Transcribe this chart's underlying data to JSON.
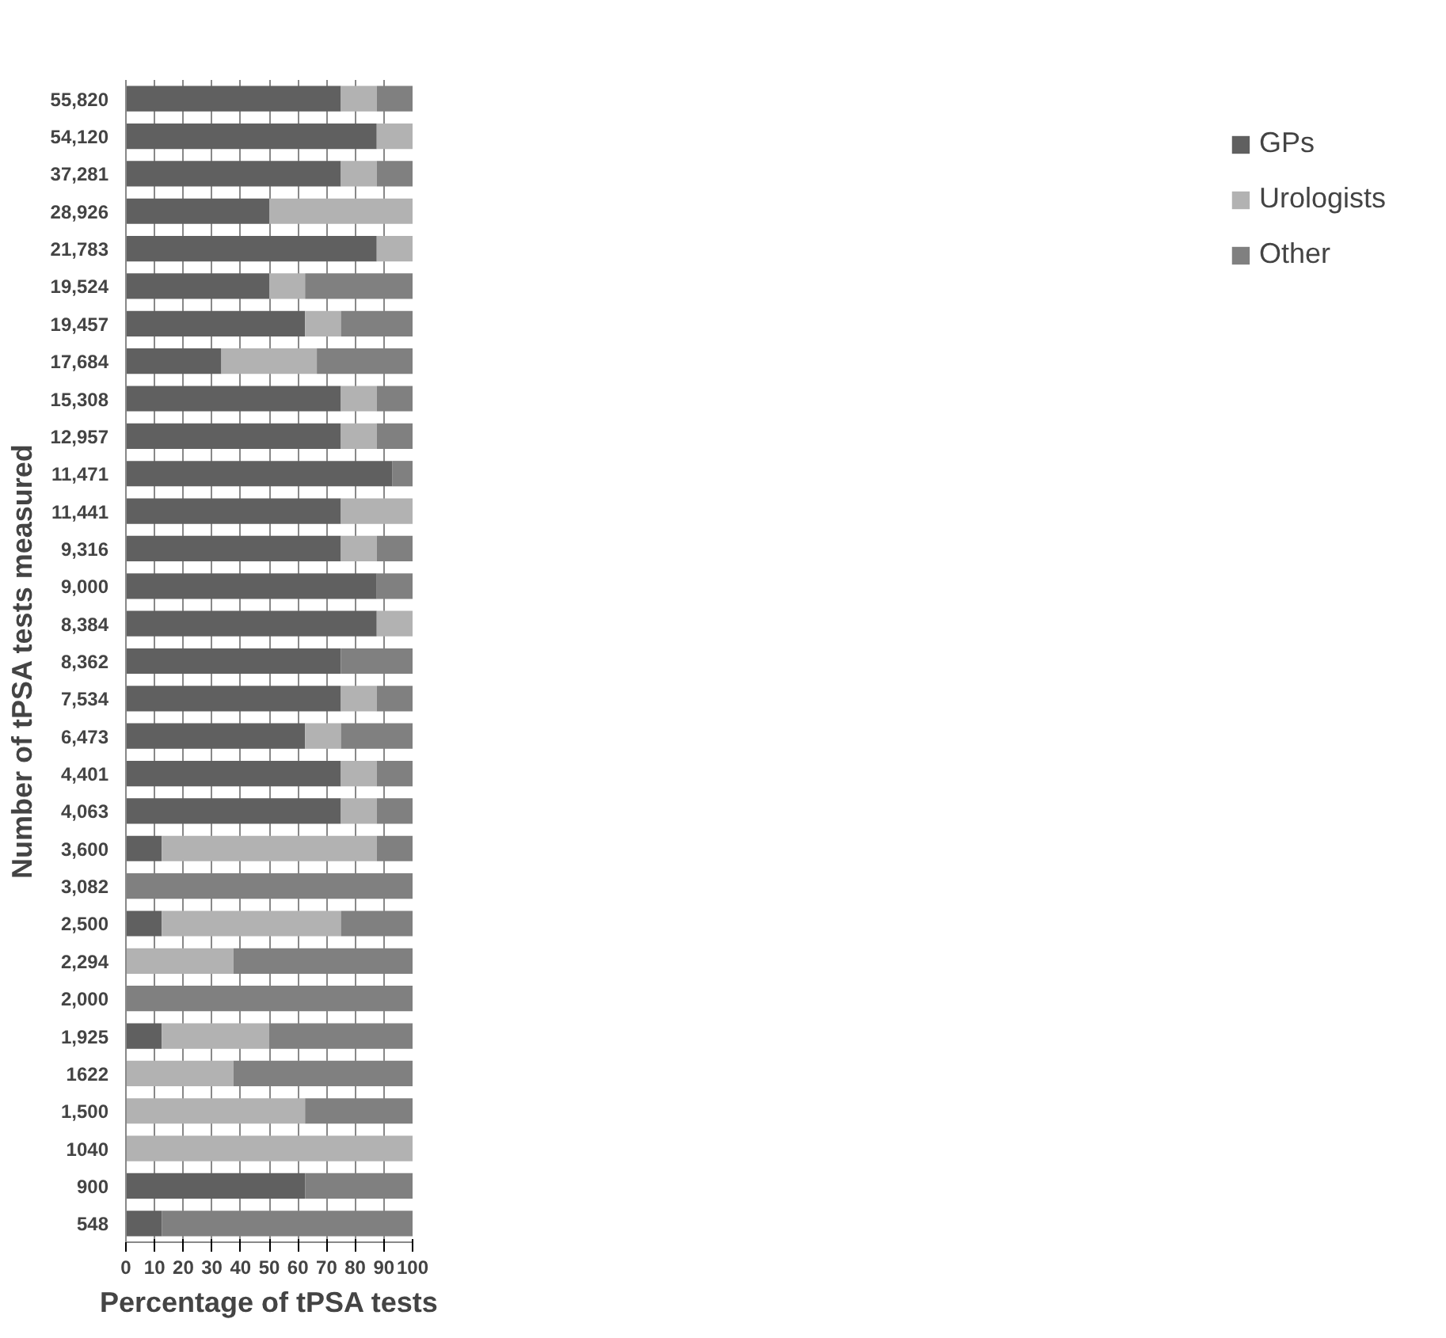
{
  "chart_data": {
    "type": "bar",
    "orientation": "horizontal",
    "stacked": true,
    "xlabel": "Percentage of tPSA tests",
    "ylabel": "Number of tPSA tests measured",
    "categories": [
      "55,820",
      "54,120",
      "37,281",
      "28,926",
      "21,783",
      "19,524",
      "19,457",
      "17,684",
      "15,308",
      "12,957",
      "11,471",
      "11,441",
      "9,316",
      "9,000",
      "8,384",
      "8,362",
      "7,534",
      "6,473",
      "4,401",
      "4,063",
      "3,600",
      "3,082",
      "2,500",
      "2,294",
      "2,000",
      "1,925",
      "1622",
      "1,500",
      "1040",
      "900",
      "548"
    ],
    "series": [
      {
        "name": "GPs",
        "color": "#606060",
        "values": [
          75,
          87.5,
          75,
          50,
          87.5,
          50,
          62.5,
          33.3,
          75,
          75,
          93,
          75,
          75,
          87.5,
          87.5,
          75,
          75,
          62.5,
          75,
          75,
          12.5,
          0,
          12.5,
          0,
          0,
          12.5,
          0,
          0,
          0,
          62.5,
          12.5
        ]
      },
      {
        "name": "Urologists",
        "color": "#b2b2b2",
        "values": [
          12.5,
          12.5,
          12.5,
          50,
          12.5,
          12.5,
          12.5,
          33.3,
          12.5,
          12.5,
          0,
          25,
          12.5,
          0,
          12.5,
          0,
          12.5,
          12.5,
          12.5,
          12.5,
          75,
          0,
          62.5,
          37.5,
          0,
          37.5,
          37.5,
          62.5,
          100,
          0,
          0
        ]
      },
      {
        "name": "Other",
        "color": "#808080",
        "values": [
          12.5,
          0,
          12.5,
          0,
          0,
          37.5,
          25,
          33.4,
          12.5,
          12.5,
          7,
          0,
          12.5,
          12.5,
          0,
          25,
          12.5,
          25,
          12.5,
          12.5,
          12.5,
          100,
          25,
          62.5,
          100,
          50,
          62.5,
          37.5,
          0,
          37.5,
          87.5
        ]
      }
    ],
    "xlim": [
      0,
      100
    ],
    "xticks": [
      0,
      10,
      20,
      30,
      40,
      50,
      60,
      70,
      80,
      90,
      100
    ],
    "grid": "x",
    "legend": "right"
  }
}
